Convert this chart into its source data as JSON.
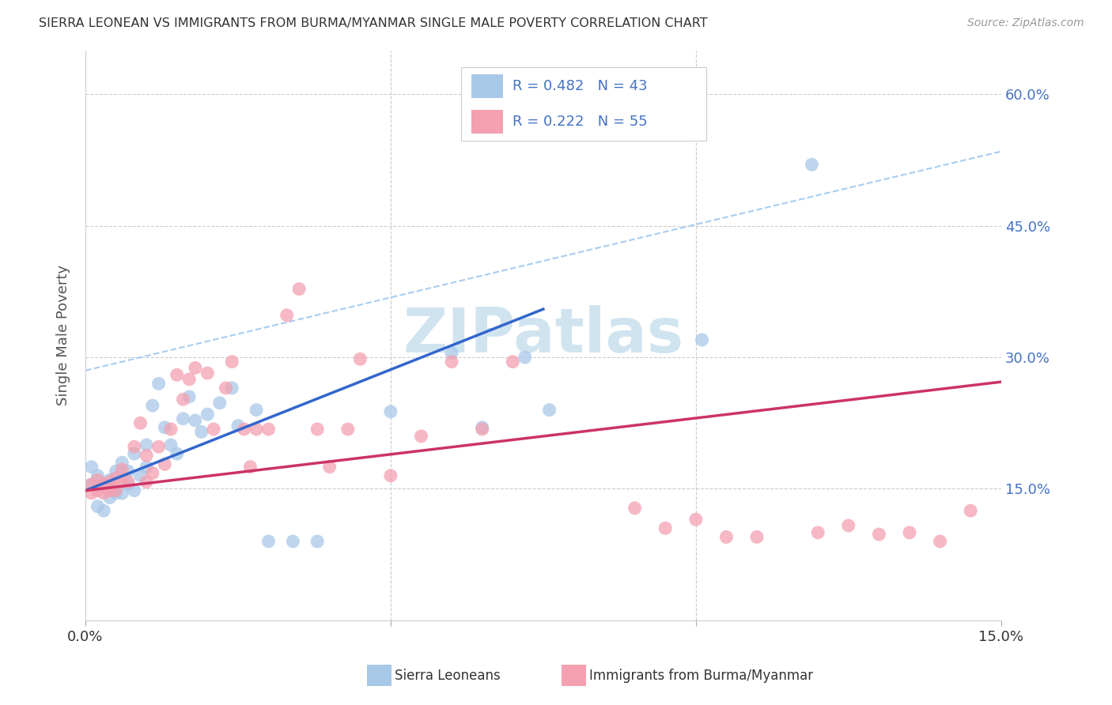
{
  "title": "SIERRA LEONEAN VS IMMIGRANTS FROM BURMA/MYANMAR SINGLE MALE POVERTY CORRELATION CHART",
  "source": "Source: ZipAtlas.com",
  "ylabel": "Single Male Poverty",
  "xmin": 0.0,
  "xmax": 0.15,
  "ymin": 0.0,
  "ymax": 0.65,
  "yticks": [
    0.15,
    0.3,
    0.45,
    0.6
  ],
  "ytick_labels": [
    "15.0%",
    "30.0%",
    "45.0%",
    "60.0%"
  ],
  "blue_color": "#a8c8e8",
  "pink_color": "#f4a0b0",
  "blue_line_color": "#3366cc",
  "pink_line_color": "#cc3366",
  "dashed_line_color": "#aaccee",
  "watermark_color": "#d0e4f0",
  "sl_x": [
    0.001,
    0.001,
    0.002,
    0.002,
    0.003,
    0.003,
    0.004,
    0.004,
    0.005,
    0.005,
    0.006,
    0.006,
    0.007,
    0.007,
    0.008,
    0.008,
    0.009,
    0.01,
    0.01,
    0.011,
    0.012,
    0.013,
    0.014,
    0.015,
    0.016,
    0.017,
    0.018,
    0.019,
    0.02,
    0.022,
    0.024,
    0.025,
    0.028,
    0.03,
    0.034,
    0.038,
    0.05,
    0.06,
    0.065,
    0.072,
    0.076,
    0.101,
    0.119
  ],
  "sl_y": [
    0.175,
    0.155,
    0.165,
    0.13,
    0.155,
    0.125,
    0.16,
    0.14,
    0.17,
    0.145,
    0.18,
    0.145,
    0.155,
    0.17,
    0.148,
    0.19,
    0.165,
    0.2,
    0.175,
    0.245,
    0.27,
    0.22,
    0.2,
    0.19,
    0.23,
    0.255,
    0.228,
    0.215,
    0.235,
    0.248,
    0.265,
    0.222,
    0.24,
    0.09,
    0.09,
    0.09,
    0.238,
    0.305,
    0.22,
    0.3,
    0.24,
    0.32,
    0.52
  ],
  "bm_x": [
    0.001,
    0.001,
    0.002,
    0.002,
    0.003,
    0.003,
    0.004,
    0.004,
    0.005,
    0.005,
    0.006,
    0.006,
    0.007,
    0.008,
    0.009,
    0.01,
    0.01,
    0.011,
    0.012,
    0.013,
    0.014,
    0.015,
    0.016,
    0.017,
    0.018,
    0.02,
    0.021,
    0.023,
    0.024,
    0.026,
    0.027,
    0.028,
    0.03,
    0.033,
    0.035,
    0.038,
    0.04,
    0.043,
    0.045,
    0.05,
    0.055,
    0.06,
    0.065,
    0.07,
    0.09,
    0.095,
    0.1,
    0.105,
    0.11,
    0.12,
    0.125,
    0.13,
    0.135,
    0.14,
    0.145
  ],
  "bm_y": [
    0.155,
    0.145,
    0.16,
    0.148,
    0.155,
    0.145,
    0.158,
    0.148,
    0.162,
    0.148,
    0.172,
    0.158,
    0.158,
    0.198,
    0.225,
    0.188,
    0.158,
    0.168,
    0.198,
    0.178,
    0.218,
    0.28,
    0.252,
    0.275,
    0.288,
    0.282,
    0.218,
    0.265,
    0.295,
    0.218,
    0.175,
    0.218,
    0.218,
    0.348,
    0.378,
    0.218,
    0.175,
    0.218,
    0.298,
    0.165,
    0.21,
    0.295,
    0.218,
    0.295,
    0.128,
    0.105,
    0.115,
    0.095,
    0.095,
    0.1,
    0.108,
    0.098,
    0.1,
    0.09,
    0.125
  ],
  "blue_line_x": [
    0.0,
    0.075
  ],
  "blue_line_y": [
    0.148,
    0.355
  ],
  "pink_line_x": [
    0.0,
    0.15
  ],
  "pink_line_y": [
    0.148,
    0.272
  ],
  "dash_line_x": [
    0.0,
    0.15
  ],
  "dash_line_y": [
    0.285,
    0.535
  ]
}
